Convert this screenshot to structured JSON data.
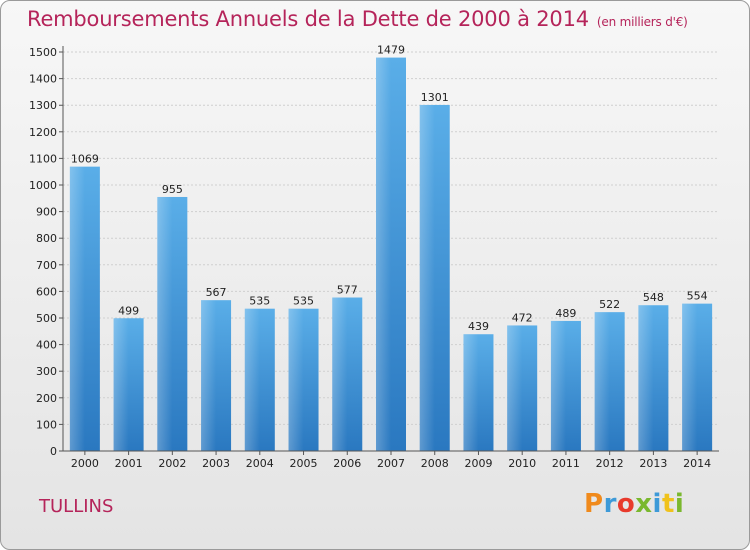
{
  "header": {
    "title": "Remboursements Annuels de la Dette de 2000 à 2014",
    "unit": "(en milliers d'€)"
  },
  "footer": {
    "city": "TULLINS",
    "logo": "Proxiti"
  },
  "colors": {
    "title": "#b5245a",
    "bar_light": "#5aaee8",
    "bar_dark": "#2a7fc6",
    "logo": [
      "#f08a1c",
      "#3d9ad8",
      "#e83a2c",
      "#7ab82e",
      "#3d9ad8",
      "#f0c21c",
      "#7ab82e"
    ]
  },
  "chart_data": {
    "type": "bar",
    "categories": [
      "2000",
      "2001",
      "2002",
      "2003",
      "2004",
      "2005",
      "2006",
      "2007",
      "2008",
      "2009",
      "2010",
      "2011",
      "2012",
      "2013",
      "2014"
    ],
    "values": [
      1069,
      499,
      955,
      567,
      535,
      535,
      577,
      1479,
      1301,
      439,
      472,
      489,
      522,
      548,
      554
    ],
    "title": "Remboursements Annuels de la Dette de 2000 à 2014",
    "ylim": [
      0,
      1500
    ],
    "yticks": [
      0,
      100,
      200,
      300,
      400,
      500,
      600,
      700,
      800,
      900,
      1000,
      1100,
      1200,
      1300,
      1400,
      1500
    ],
    "grid": true
  }
}
